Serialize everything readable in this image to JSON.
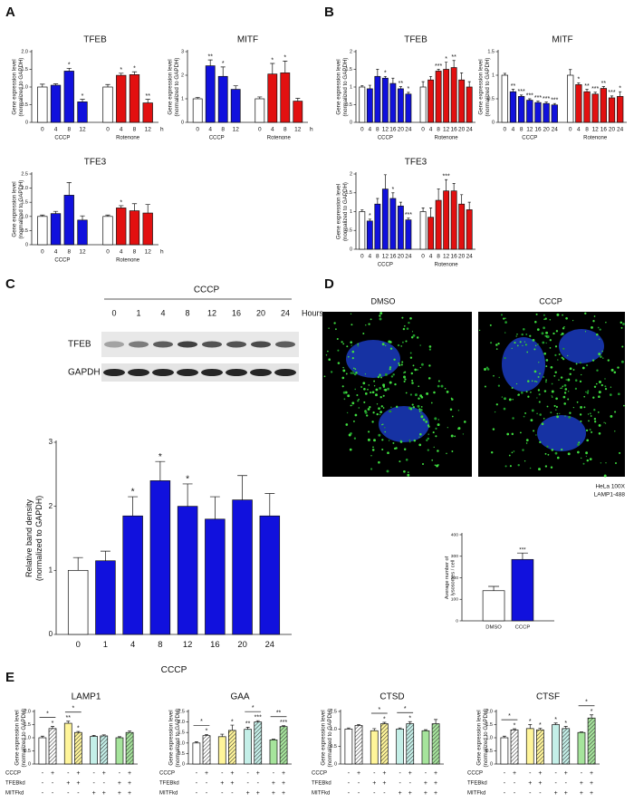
{
  "panel_labels": [
    "A",
    "B",
    "C",
    "D",
    "E"
  ],
  "blot": {
    "treatment": "CCCP",
    "lanes": [
      "0",
      "1",
      "4",
      "8",
      "12",
      "16",
      "20",
      "24"
    ],
    "unit": "Hours",
    "rows": [
      "TFEB",
      "GAPDH"
    ]
  },
  "microscopy": {
    "images": [
      "DMSO",
      "CCCP"
    ],
    "caption": [
      "HeLa 100X",
      "LAMP1-488"
    ]
  },
  "chart_data": [
    {
      "type": "bar",
      "title": "TFEB",
      "ylabel": [
        "Gene expression level",
        "(normalized to GAPDH)"
      ],
      "categories": [
        "0",
        "4",
        "8",
        "12",
        "0",
        "4",
        "8",
        "12"
      ],
      "group_labels": [
        "CCCP",
        "Rotenone"
      ],
      "unit_label": "h",
      "values": [
        1.0,
        1.05,
        1.45,
        0.58,
        1.0,
        1.33,
        1.35,
        0.55
      ],
      "errors": [
        0.08,
        0.04,
        0.08,
        0.07,
        0.07,
        0.06,
        0.08,
        0.1
      ],
      "colors": [
        "#ffffff",
        "#1111dd",
        "#1111dd",
        "#1111dd",
        "#ffffff",
        "#e21010",
        "#e21010",
        "#e21010"
      ],
      "annotations": [
        null,
        null,
        "*",
        "*",
        null,
        "*",
        "*",
        "**"
      ],
      "ylim": [
        0,
        2
      ],
      "yticks": [
        0,
        0.5,
        {
          "value": 1,
          "label": "1.0"
        },
        1.5,
        {
          "value": 2,
          "label": "2.0"
        }
      ]
    },
    {
      "type": "bar",
      "title": "MITF",
      "ylabel": [
        "Gene expression level",
        "(normalized to GAPDH)"
      ],
      "categories": [
        "0",
        "4",
        "8",
        "12",
        "0",
        "4",
        "8",
        "12"
      ],
      "group_labels": [
        "CCCP",
        "Rotenone"
      ],
      "unit_label": "h",
      "values": [
        1.0,
        2.4,
        1.95,
        1.4,
        1.0,
        2.05,
        2.1,
        0.9
      ],
      "errors": [
        0.06,
        0.25,
        0.4,
        0.15,
        0.08,
        0.45,
        0.5,
        0.12
      ],
      "colors": [
        "#ffffff",
        "#1111dd",
        "#1111dd",
        "#1111dd",
        "#ffffff",
        "#e21010",
        "#e21010",
        "#e21010"
      ],
      "annotations": [
        null,
        "**",
        "*",
        null,
        null,
        "*",
        "*",
        null
      ],
      "ylim": [
        0,
        3
      ],
      "yticks": [
        0,
        1,
        2,
        3
      ]
    },
    {
      "type": "bar",
      "title": "TFE3",
      "ylabel": [
        "Gene expression level",
        "(normalized to GAPDH)"
      ],
      "categories": [
        "0",
        "4",
        "8",
        "12",
        "0",
        "4",
        "8",
        "12"
      ],
      "group_labels": [
        "CCCP",
        "Rotenone"
      ],
      "unit_label": "h",
      "values": [
        1.0,
        1.1,
        1.75,
        0.87,
        1.0,
        1.3,
        1.2,
        1.12
      ],
      "errors": [
        0.05,
        0.08,
        0.45,
        0.15,
        0.05,
        0.08,
        0.25,
        0.3
      ],
      "colors": [
        "#ffffff",
        "#1111dd",
        "#1111dd",
        "#1111dd",
        "#ffffff",
        "#e21010",
        "#e21010",
        "#e21010"
      ],
      "annotations": [
        null,
        null,
        null,
        null,
        null,
        "*",
        null,
        null
      ],
      "ylim": [
        0,
        2.5
      ],
      "yticks": [
        0,
        0.5,
        {
          "value": 1,
          "label": "1.0"
        },
        1.5,
        {
          "value": 2,
          "label": "2.0"
        },
        2.5
      ]
    },
    {
      "type": "bar",
      "title": "TFEB",
      "ylabel": [
        "Gene expression level",
        "(normalized to GAPDH)"
      ],
      "categories": [
        "0",
        "4",
        "8",
        "12",
        "16",
        "20",
        "24",
        "0",
        "4",
        "8",
        "12",
        "16",
        "20",
        "24"
      ],
      "group_labels": [
        "CCCP",
        "Rotenone"
      ],
      "values": [
        1.0,
        0.95,
        1.3,
        1.25,
        1.1,
        0.95,
        0.8,
        1.0,
        1.2,
        1.45,
        1.5,
        1.55,
        1.2,
        1.0
      ],
      "errors": [
        0.04,
        0.1,
        0.2,
        0.05,
        0.15,
        0.06,
        0.05,
        0.15,
        0.1,
        0.05,
        0.2,
        0.2,
        0.2,
        0.15
      ],
      "colors": [
        "#ffffff",
        "#1111dd",
        "#1111dd",
        "#1111dd",
        "#1111dd",
        "#1111dd",
        "#1111dd",
        "#ffffff",
        "#e21010",
        "#e21010",
        "#e21010",
        "#e21010",
        "#e21010",
        "#e21010"
      ],
      "annotations": [
        null,
        null,
        null,
        "*",
        null,
        "**",
        "*",
        null,
        null,
        "***",
        "*",
        "**",
        null,
        null
      ],
      "ylim": [
        0,
        2
      ],
      "yticks": [
        0,
        0.5,
        1,
        1.5,
        2
      ]
    },
    {
      "type": "bar",
      "title": "MITF",
      "ylabel": [
        "Gene expression level",
        "(normalized to GAPDH)"
      ],
      "categories": [
        "0",
        "4",
        "8",
        "12",
        "16",
        "20",
        "24",
        "0",
        "4",
        "8",
        "12",
        "16",
        "20",
        "24"
      ],
      "group_labels": [
        "CCCP",
        "Rotenone"
      ],
      "values": [
        1.0,
        0.65,
        0.55,
        0.47,
        0.42,
        0.4,
        0.37,
        1.0,
        0.8,
        0.65,
        0.6,
        0.72,
        0.52,
        0.55
      ],
      "errors": [
        0.04,
        0.05,
        0.03,
        0.03,
        0.03,
        0.03,
        0.03,
        0.12,
        0.04,
        0.05,
        0.04,
        0.04,
        0.04,
        0.1
      ],
      "colors": [
        "#ffffff",
        "#1111dd",
        "#1111dd",
        "#1111dd",
        "#1111dd",
        "#1111dd",
        "#1111dd",
        "#ffffff",
        "#e21010",
        "#e21010",
        "#e21010",
        "#e21010",
        "#e21010",
        "#e21010"
      ],
      "annotations": [
        null,
        "**",
        "***",
        "***",
        "***",
        "***",
        "***",
        null,
        "*",
        "**",
        "***",
        "**",
        "***",
        "*"
      ],
      "ylim": [
        0,
        1.5
      ],
      "yticks": [
        0,
        0.5,
        1,
        1.5
      ]
    },
    {
      "type": "bar",
      "title": "TFE3",
      "ylabel": [
        "Gene expression level",
        "(normalized to GAPDH)"
      ],
      "categories": [
        "0",
        "4",
        "8",
        "12",
        "16",
        "20",
        "24",
        "0",
        "4",
        "8",
        "12",
        "16",
        "20",
        "24"
      ],
      "group_labels": [
        "CCCP",
        "Rotenone"
      ],
      "values": [
        1.0,
        0.75,
        1.2,
        1.6,
        1.35,
        1.15,
        0.78,
        1.0,
        0.85,
        1.3,
        1.55,
        1.55,
        1.2,
        1.05
      ],
      "errors": [
        0.05,
        0.05,
        0.15,
        0.38,
        0.15,
        0.1,
        0.05,
        0.1,
        0.25,
        0.3,
        0.3,
        0.2,
        0.25,
        0.2
      ],
      "colors": [
        "#ffffff",
        "#1111dd",
        "#1111dd",
        "#1111dd",
        "#1111dd",
        "#1111dd",
        "#1111dd",
        "#ffffff",
        "#e21010",
        "#e21010",
        "#e21010",
        "#e21010",
        "#e21010",
        "#e21010"
      ],
      "annotations": [
        null,
        "*",
        null,
        null,
        "*",
        null,
        "***",
        null,
        null,
        null,
        "***",
        null,
        null,
        null
      ],
      "ylim": [
        0,
        2
      ],
      "yticks": [
        0,
        0.5,
        1,
        1.5,
        2
      ]
    },
    {
      "type": "bar",
      "ylabel": [
        "Relative band density",
        "(normalized to GAPDH)"
      ],
      "xlabel": "CCCP",
      "categories": [
        "0",
        "1",
        "4",
        "8",
        "12",
        "16",
        "20",
        "24"
      ],
      "values": [
        1.0,
        1.15,
        1.85,
        2.4,
        2.0,
        1.8,
        2.1,
        1.85
      ],
      "errors": [
        0.2,
        0.15,
        0.3,
        0.3,
        0.35,
        0.35,
        0.38,
        0.35
      ],
      "colors": [
        "#ffffff",
        "#1111dd",
        "#1111dd",
        "#1111dd",
        "#1111dd",
        "#1111dd",
        "#1111dd",
        "#1111dd"
      ],
      "annotations": [
        null,
        null,
        "*",
        "*",
        "*",
        null,
        null,
        null
      ],
      "ylim": [
        0,
        3
      ],
      "yticks": [
        0,
        1,
        2,
        3
      ]
    },
    {
      "type": "bar",
      "ylabel": [
        "Average number of",
        "lysosomes / cell"
      ],
      "categories": [
        "DMSO",
        "CCCP"
      ],
      "values": [
        140,
        285
      ],
      "errors": [
        20,
        30
      ],
      "colors": [
        "#ffffff",
        "#1111dd"
      ],
      "annotations": [
        null,
        "***"
      ],
      "ylim": [
        0,
        400
      ],
      "yticks": [
        0,
        100,
        200,
        300,
        400
      ]
    },
    {
      "type": "bar",
      "title": "LAMP1",
      "ylabel": [
        "Gene expression level",
        "(normalized to GAPDH)"
      ],
      "values": [
        1.0,
        1.35,
        1.55,
        1.2,
        1.05,
        1.07,
        1.0,
        1.2
      ],
      "errors": [
        0.06,
        0.08,
        0.08,
        0.04,
        0.04,
        0.04,
        0.04,
        0.06
      ],
      "colors": [
        "#ffffff",
        "#ffffff",
        "#fff59a",
        "#fff59a",
        "#c4efe8",
        "#c4efe8",
        "#a6e49c",
        "#a6e49c"
      ],
      "hatch": [
        false,
        true,
        false,
        true,
        false,
        true,
        false,
        true
      ],
      "annotations": [
        null,
        "*",
        "**",
        "*",
        null,
        null,
        null,
        null
      ],
      "brackets": [
        {
          "bars": [
            0,
            1
          ],
          "label": "*"
        },
        {
          "bars": [
            2,
            3
          ],
          "label": "*"
        }
      ],
      "conditions": [
        {
          "name": "CCCP",
          "signs": [
            "-",
            "+",
            "-",
            "+",
            "-",
            "+",
            "-",
            "+"
          ]
        },
        {
          "name": "TFEBkd",
          "signs": [
            "-",
            "-",
            "+",
            "+",
            "-",
            "-",
            "+",
            "+"
          ]
        },
        {
          "name": "MITFkd",
          "signs": [
            "-",
            "-",
            "-",
            "-",
            "+",
            "+",
            "+",
            "+"
          ]
        }
      ],
      "ylim": [
        0,
        2
      ],
      "yticks": [
        0,
        0.5,
        {
          "value": 1,
          "label": "1.0"
        },
        1.5,
        {
          "value": 2,
          "label": "2.0"
        }
      ]
    },
    {
      "type": "bar",
      "title": "GAA",
      "ylabel": [
        "Gene expression level",
        "(normalized to GAPDH)"
      ],
      "values": [
        1.0,
        1.35,
        1.3,
        1.6,
        1.65,
        2.0,
        1.15,
        1.78
      ],
      "errors": [
        0.06,
        0.06,
        0.12,
        0.25,
        0.1,
        0.06,
        0.03,
        0.04
      ],
      "colors": [
        "#ffffff",
        "#ffffff",
        "#fff59a",
        "#fff59a",
        "#c4efe8",
        "#c4efe8",
        "#a6e49c",
        "#a6e49c"
      ],
      "hatch": [
        false,
        true,
        false,
        true,
        false,
        true,
        false,
        true
      ],
      "annotations": [
        null,
        "*",
        null,
        "*",
        "**",
        "***",
        null,
        "***"
      ],
      "brackets": [
        {
          "bars": [
            0,
            1
          ],
          "label": "*"
        },
        {
          "bars": [
            4,
            5
          ],
          "label": "*"
        },
        {
          "bars": [
            6,
            7
          ],
          "label": "**"
        }
      ],
      "conditions": [
        {
          "name": "CCCP",
          "signs": [
            "-",
            "+",
            "-",
            "+",
            "-",
            "+",
            "-",
            "+"
          ]
        },
        {
          "name": "TFEBkd",
          "signs": [
            "-",
            "-",
            "+",
            "+",
            "-",
            "-",
            "+",
            "+"
          ]
        },
        {
          "name": "MITFkd",
          "signs": [
            "-",
            "-",
            "-",
            "-",
            "+",
            "+",
            "+",
            "+"
          ]
        }
      ],
      "ylim": [
        0,
        2.5
      ],
      "yticks": [
        0,
        0.5,
        {
          "value": 1,
          "label": "1.0"
        },
        1.5,
        {
          "value": 2,
          "label": "2.0"
        },
        2.5
      ]
    },
    {
      "type": "bar",
      "title": "CTSD",
      "ylabel": [
        "Gene expression level",
        "(normalized to GAPDH)"
      ],
      "values": [
        1.0,
        1.1,
        0.95,
        1.15,
        1.0,
        1.15,
        0.95,
        1.15
      ],
      "errors": [
        0.03,
        0.03,
        0.06,
        0.04,
        0.03,
        0.06,
        0.03,
        0.12
      ],
      "colors": [
        "#ffffff",
        "#ffffff",
        "#fff59a",
        "#fff59a",
        "#c4efe8",
        "#c4efe8",
        "#a6e49c",
        "#a6e49c"
      ],
      "hatch": [
        false,
        true,
        false,
        true,
        false,
        true,
        false,
        true
      ],
      "annotations": [
        null,
        null,
        null,
        "*",
        null,
        "*",
        null,
        null
      ],
      "brackets": [
        {
          "bars": [
            2,
            3
          ],
          "label": "*"
        },
        {
          "bars": [
            4,
            5
          ],
          "label": "*"
        }
      ],
      "conditions": [
        {
          "name": "CCCP",
          "signs": [
            "-",
            "+",
            "-",
            "+",
            "-",
            "+",
            "-",
            "+"
          ]
        },
        {
          "name": "TFEBkd",
          "signs": [
            "-",
            "-",
            "+",
            "+",
            "-",
            "-",
            "+",
            "+"
          ]
        },
        {
          "name": "MITFkd",
          "signs": [
            "-",
            "-",
            "-",
            "-",
            "+",
            "+",
            "+",
            "+"
          ]
        }
      ],
      "ylim": [
        0,
        1.5
      ],
      "yticks": [
        0,
        0.5,
        {
          "value": 1,
          "label": "1.0"
        },
        1.5
      ]
    },
    {
      "type": "bar",
      "title": "CTSF",
      "ylabel": [
        "Gene expression level",
        "(normalized to GAPDH)"
      ],
      "values": [
        1.0,
        1.3,
        1.35,
        1.3,
        1.5,
        1.35,
        1.2,
        1.75
      ],
      "errors": [
        0.06,
        0.04,
        0.15,
        0.06,
        0.06,
        0.08,
        0.02,
        0.12
      ],
      "colors": [
        "#ffffff",
        "#ffffff",
        "#fff59a",
        "#fff59a",
        "#c4efe8",
        "#c4efe8",
        "#a6e49c",
        "#a6e49c"
      ],
      "hatch": [
        false,
        true,
        false,
        true,
        false,
        true,
        false,
        true
      ],
      "annotations": [
        null,
        "*",
        "*",
        "*",
        "*",
        "*",
        null,
        "*"
      ],
      "brackets": [
        {
          "bars": [
            0,
            1
          ],
          "label": "*"
        },
        {
          "bars": [
            6,
            7
          ],
          "label": "*"
        }
      ],
      "conditions": [
        {
          "name": "CCCP",
          "signs": [
            "-",
            "+",
            "-",
            "+",
            "-",
            "+",
            "-",
            "+"
          ]
        },
        {
          "name": "TFEBkd",
          "signs": [
            "-",
            "-",
            "+",
            "+",
            "-",
            "-",
            "+",
            "+"
          ]
        },
        {
          "name": "MITFkd",
          "signs": [
            "-",
            "-",
            "-",
            "-",
            "+",
            "+",
            "+",
            "+"
          ]
        }
      ],
      "ylim": [
        0,
        2
      ],
      "yticks": [
        0,
        0.5,
        {
          "value": 1,
          "label": "1.0"
        },
        1.5,
        {
          "value": 2,
          "label": "2.0"
        }
      ]
    }
  ]
}
